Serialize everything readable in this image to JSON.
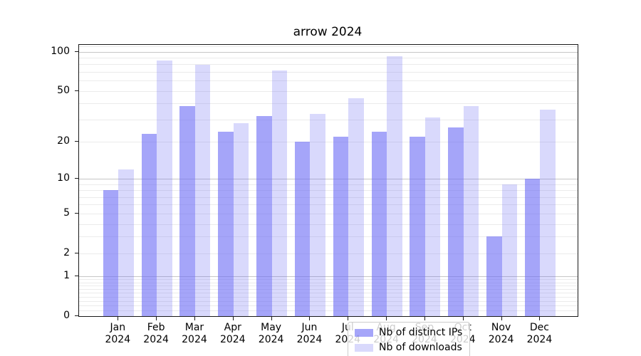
{
  "chart_data": {
    "type": "bar",
    "title": "arrow 2024",
    "categories": [
      "Jan 2024",
      "Feb 2024",
      "Mar 2024",
      "Apr 2024",
      "May 2024",
      "Jun 2024",
      "Jul 2024",
      "Aug 2024",
      "Sep 2024",
      "Oct 2024",
      "Nov 2024",
      "Dec 2024"
    ],
    "series": [
      {
        "name": "Nb of distinct IPs",
        "color": "rgba(110,110,245,0.62)",
        "values": [
          8,
          23,
          38,
          24,
          32,
          20,
          22,
          24,
          22,
          26,
          3,
          10
        ]
      },
      {
        "name": "Nb of downloads",
        "color": "rgba(110,110,245,0.26)",
        "values": [
          12,
          86,
          80,
          28,
          72,
          33,
          44,
          92,
          31,
          38,
          9,
          36
        ]
      }
    ],
    "xlabel": "",
    "ylabel": "",
    "y_scale": "log1p",
    "y_ticks": [
      0,
      1,
      2,
      5,
      10,
      20,
      50,
      100
    ],
    "y_minor_ticks": [
      0.1,
      0.2,
      0.3,
      0.4,
      0.5,
      0.6,
      0.7,
      0.8,
      0.9,
      2,
      3,
      4,
      5,
      6,
      7,
      8,
      9,
      20,
      30,
      40,
      50,
      60,
      70,
      80,
      90,
      110
    ],
    "y_major_gridlines": [
      1,
      10,
      100
    ],
    "ylim": [
      0,
      113
    ],
    "grid": "on",
    "legend_position": "lower center",
    "colors": {
      "major_grid": "#c6c6c6",
      "minor_grid": "#ebebeb",
      "spine": "#1a1a1a",
      "text": "#000000",
      "background": "#ffffff"
    }
  }
}
